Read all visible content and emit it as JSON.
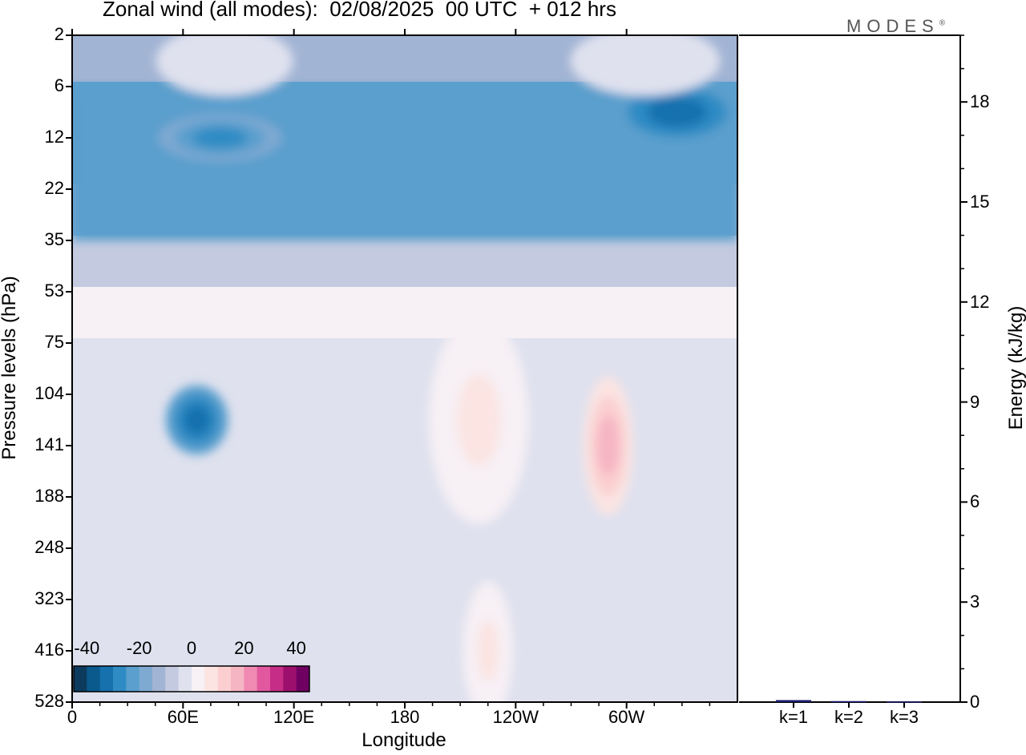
{
  "figure": {
    "title": "Zonal wind (all modes):  02/08/2025  00 UTC  + 012 hrs",
    "logo": "MODES",
    "logo_mark": "®"
  },
  "chart_data": [
    {
      "type": "heatmap",
      "xlabel": "Longitude",
      "ylabel": "Pressure levels (hPa)",
      "x_ticks": [
        "0",
        "60E",
        "120E",
        "180",
        "120W",
        "60W"
      ],
      "x_tick_values": [
        0,
        60,
        120,
        180,
        240,
        300
      ],
      "xlim": [
        0,
        360
      ],
      "y_ticks": [
        "2",
        "6",
        "12",
        "22",
        "35",
        "53",
        "75",
        "104",
        "141",
        "188",
        "248",
        "323",
        "416",
        "528"
      ],
      "y_order": "top-to-bottom",
      "colorbar": {
        "tick_labels": [
          "-40",
          "-20",
          "0",
          "20",
          "40"
        ],
        "tick_values": [
          -40,
          -20,
          0,
          20,
          40
        ],
        "levels": [
          -45,
          -40,
          -35,
          -30,
          -25,
          -20,
          -15,
          -10,
          -5,
          0,
          5,
          10,
          15,
          20,
          25,
          30,
          35,
          40,
          45
        ],
        "colors": [
          "#0d3b5e",
          "#0a5a8e",
          "#1671ad",
          "#2f8bc4",
          "#5a9fcd",
          "#7ea9d1",
          "#a2b4d4",
          "#c4cbe0",
          "#dfe1ee",
          "#f7f0f5",
          "#fbe4e2",
          "#fbcfd0",
          "#f6b5c3",
          "#f08ab3",
          "#e1589f",
          "#c52d86",
          "#9c0f6d",
          "#6f0062"
        ]
      },
      "regions": [
        {
          "name": "upper-easterly-band",
          "value": -25,
          "lon": [
            0,
            360
          ],
          "levels": [
            "6",
            "35"
          ]
        },
        {
          "name": "upper-core-east",
          "value": -35,
          "lon": [
            300,
            355
          ],
          "levels": [
            "6",
            "12"
          ]
        },
        {
          "name": "upper-core-west",
          "value": -30,
          "lon": [
            55,
            105
          ],
          "levels": [
            "12",
            "12"
          ]
        },
        {
          "name": "strat-weak-west",
          "value": -5,
          "lon": [
            280,
            340
          ],
          "levels": [
            "2",
            "6"
          ]
        },
        {
          "name": "strat-weak-center",
          "value": -5,
          "lon": [
            55,
            110
          ],
          "levels": [
            "2",
            "6"
          ]
        },
        {
          "name": "lower-easterly-jet",
          "value": -35,
          "lon": [
            55,
            80
          ],
          "levels": [
            "104",
            "141"
          ]
        },
        {
          "name": "westerly-core",
          "value": 15,
          "lon": [
            280,
            300
          ],
          "levels": [
            "104",
            "188"
          ]
        },
        {
          "name": "westerly-weak-mid",
          "value": 5,
          "lon": [
            200,
            240
          ],
          "levels": [
            "75",
            "188"
          ]
        },
        {
          "name": "surface-westerly",
          "value": 5,
          "lon": [
            215,
            235
          ],
          "levels": [
            "323",
            "528"
          ]
        }
      ]
    },
    {
      "type": "bar",
      "categories": [
        "k=1",
        "k=2",
        "k=3"
      ],
      "values": [
        0.06,
        0.03,
        0.02
      ],
      "ylabel": "Energy (kJ/kg)",
      "ylim": [
        0,
        20
      ],
      "y_ticks": [
        0,
        3,
        6,
        9,
        12,
        15,
        18
      ],
      "y_tick_labels": [
        "0",
        "3",
        "6",
        "9",
        "12",
        "15",
        "18"
      ],
      "bar_color": "#1a1a6e"
    }
  ]
}
